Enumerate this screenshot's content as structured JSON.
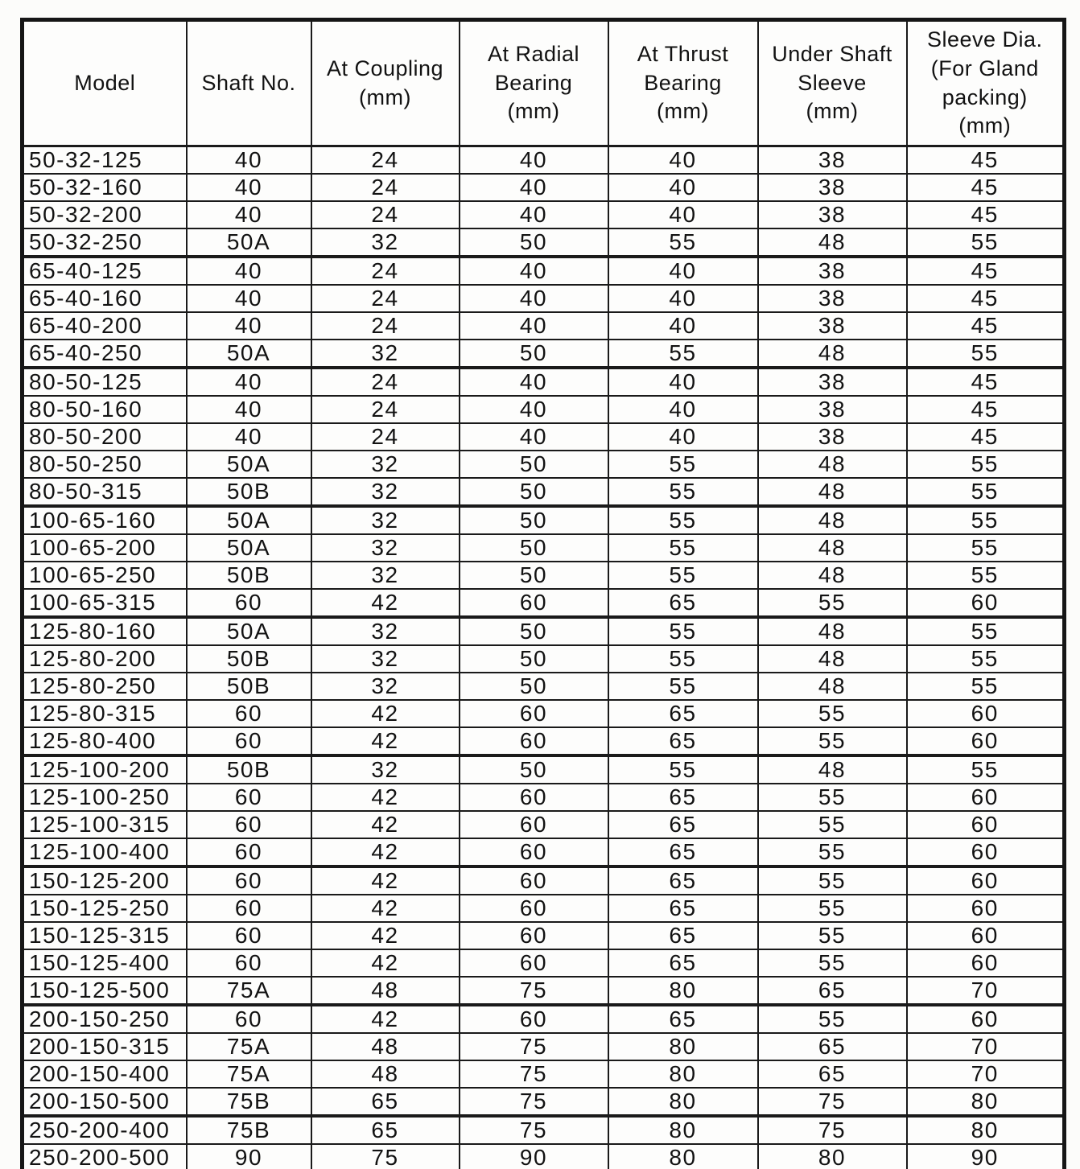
{
  "table": {
    "columns": [
      "Model",
      "Shaft No.",
      "At Coupling\n(mm)",
      "At Radial\nBearing\n(mm)",
      "At Thrust\nBearing\n(mm)",
      "Under Shaft\nSleeve\n(mm)",
      "Sleeve Dia.\n(For Gland\npacking)\n(mm)"
    ],
    "groups": [
      [
        [
          "50-32-125",
          "40",
          "24",
          "40",
          "40",
          "38",
          "45"
        ],
        [
          "50-32-160",
          "40",
          "24",
          "40",
          "40",
          "38",
          "45"
        ],
        [
          "50-32-200",
          "40",
          "24",
          "40",
          "40",
          "38",
          "45"
        ],
        [
          "50-32-250",
          "50A",
          "32",
          "50",
          "55",
          "48",
          "55"
        ]
      ],
      [
        [
          "65-40-125",
          "40",
          "24",
          "40",
          "40",
          "38",
          "45"
        ],
        [
          "65-40-160",
          "40",
          "24",
          "40",
          "40",
          "38",
          "45"
        ],
        [
          "65-40-200",
          "40",
          "24",
          "40",
          "40",
          "38",
          "45"
        ],
        [
          "65-40-250",
          "50A",
          "32",
          "50",
          "55",
          "48",
          "55"
        ]
      ],
      [
        [
          "80-50-125",
          "40",
          "24",
          "40",
          "40",
          "38",
          "45"
        ],
        [
          "80-50-160",
          "40",
          "24",
          "40",
          "40",
          "38",
          "45"
        ],
        [
          "80-50-200",
          "40",
          "24",
          "40",
          "40",
          "38",
          "45"
        ],
        [
          "80-50-250",
          "50A",
          "32",
          "50",
          "55",
          "48",
          "55"
        ],
        [
          "80-50-315",
          "50B",
          "32",
          "50",
          "55",
          "48",
          "55"
        ]
      ],
      [
        [
          "100-65-160",
          "50A",
          "32",
          "50",
          "55",
          "48",
          "55"
        ],
        [
          "100-65-200",
          "50A",
          "32",
          "50",
          "55",
          "48",
          "55"
        ],
        [
          "100-65-250",
          "50B",
          "32",
          "50",
          "55",
          "48",
          "55"
        ],
        [
          "100-65-315",
          "60",
          "42",
          "60",
          "65",
          "55",
          "60"
        ]
      ],
      [
        [
          "125-80-160",
          "50A",
          "32",
          "50",
          "55",
          "48",
          "55"
        ],
        [
          "125-80-200",
          "50B",
          "32",
          "50",
          "55",
          "48",
          "55"
        ],
        [
          "125-80-250",
          "50B",
          "32",
          "50",
          "55",
          "48",
          "55"
        ],
        [
          "125-80-315",
          "60",
          "42",
          "60",
          "65",
          "55",
          "60"
        ],
        [
          "125-80-400",
          "60",
          "42",
          "60",
          "65",
          "55",
          "60"
        ]
      ],
      [
        [
          "125-100-200",
          "50B",
          "32",
          "50",
          "55",
          "48",
          "55"
        ],
        [
          "125-100-250",
          "60",
          "42",
          "60",
          "65",
          "55",
          "60"
        ],
        [
          "125-100-315",
          "60",
          "42",
          "60",
          "65",
          "55",
          "60"
        ],
        [
          "125-100-400",
          "60",
          "42",
          "60",
          "65",
          "55",
          "60"
        ]
      ],
      [
        [
          "150-125-200",
          "60",
          "42",
          "60",
          "65",
          "55",
          "60"
        ],
        [
          "150-125-250",
          "60",
          "42",
          "60",
          "65",
          "55",
          "60"
        ],
        [
          "150-125-315",
          "60",
          "42",
          "60",
          "65",
          "55",
          "60"
        ],
        [
          "150-125-400",
          "60",
          "42",
          "60",
          "65",
          "55",
          "60"
        ],
        [
          "150-125-500",
          "75A",
          "48",
          "75",
          "80",
          "65",
          "70"
        ]
      ],
      [
        [
          "200-150-250",
          "60",
          "42",
          "60",
          "65",
          "55",
          "60"
        ],
        [
          "200-150-315",
          "75A",
          "48",
          "75",
          "80",
          "65",
          "70"
        ],
        [
          "200-150-400",
          "75A",
          "48",
          "75",
          "80",
          "65",
          "70"
        ],
        [
          "200-150-500",
          "75B",
          "65",
          "75",
          "80",
          "75",
          "80"
        ]
      ],
      [
        [
          "250-200-400",
          "75B",
          "65",
          "75",
          "80",
          "75",
          "80"
        ],
        [
          "250-200-500",
          "90",
          "75",
          "90",
          "80",
          "80",
          "90"
        ]
      ]
    ]
  }
}
